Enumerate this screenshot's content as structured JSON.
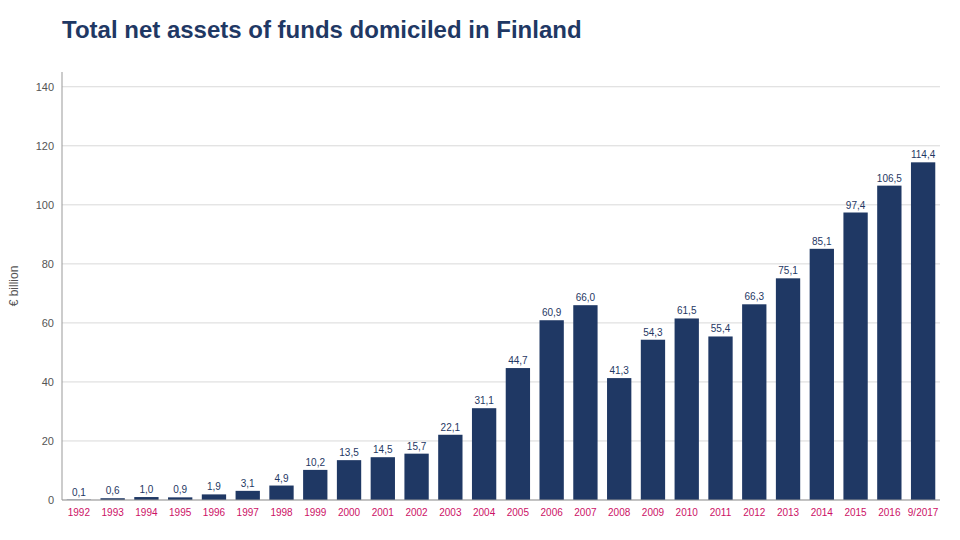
{
  "chart_data": {
    "type": "bar",
    "title": "Total net assets of funds domiciled in Finland",
    "ylabel": "€ billion",
    "categories": [
      "1992",
      "1993",
      "1994",
      "1995",
      "1996",
      "1997",
      "1998",
      "1999",
      "2000",
      "2001",
      "2002",
      "2003",
      "2004",
      "2005",
      "2006",
      "2007",
      "2008",
      "2009",
      "2010",
      "2011",
      "2012",
      "2013",
      "2014",
      "2015",
      "2016",
      "9/2017"
    ],
    "values": [
      0.1,
      0.6,
      1.0,
      0.9,
      1.9,
      3.1,
      4.9,
      10.2,
      13.5,
      14.5,
      15.7,
      22.1,
      31.1,
      44.7,
      60.9,
      66.0,
      41.3,
      54.3,
      61.5,
      55.4,
      66.3,
      75.1,
      85.1,
      97.4,
      106.5,
      114.4
    ],
    "value_labels": [
      "0,1",
      "0,6",
      "1,0",
      "0,9",
      "1,9",
      "3,1",
      "4,9",
      "10,2",
      "13,5",
      "14,5",
      "15,7",
      "22,1",
      "31,1",
      "44,7",
      "60,9",
      "66,0",
      "41,3",
      "54,3",
      "61,5",
      "55,4",
      "66,3",
      "75,1",
      "85,1",
      "97,4",
      "106,5",
      "114,4"
    ],
    "color": "#1F3864",
    "ylim": [
      0,
      145
    ],
    "yticks": [
      0,
      20,
      40,
      60,
      80,
      100,
      120,
      140
    ],
    "grid": true,
    "data_labels": true
  }
}
